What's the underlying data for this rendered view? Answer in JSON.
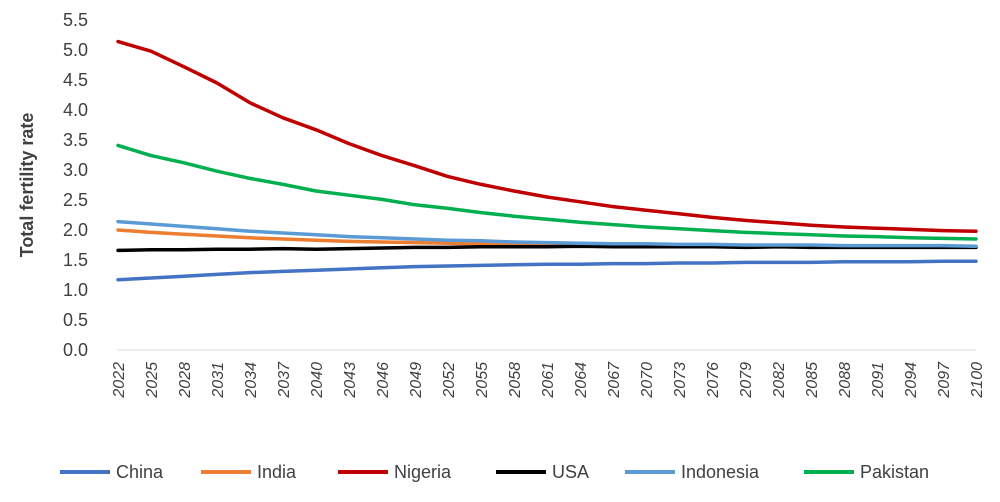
{
  "chart_data": {
    "type": "line",
    "ylabel": "Total fertility rate",
    "xlabel": "",
    "title": "",
    "ylim": [
      0,
      5.5
    ],
    "yticks": [
      "0.0",
      "0.5",
      "1.0",
      "1.5",
      "2.0",
      "2.5",
      "3.0",
      "3.5",
      "4.0",
      "4.5",
      "5.0",
      "5.5"
    ],
    "xrange": [
      2022,
      2100
    ],
    "xticks": [
      "2022",
      "2025",
      "2028",
      "2031",
      "2034",
      "2037",
      "2040",
      "2043",
      "2046",
      "2049",
      "2052",
      "2055",
      "2058",
      "2061",
      "2064",
      "2067",
      "2070",
      "2073",
      "2076",
      "2079",
      "2082",
      "2085",
      "2088",
      "2091",
      "2094",
      "2097",
      "2100"
    ],
    "grid": false,
    "legend_position": "bottom",
    "series": [
      {
        "name": "China",
        "color": "#4472c4",
        "points": [
          [
            2022,
            1.17
          ],
          [
            2025,
            1.2
          ],
          [
            2028,
            1.23
          ],
          [
            2031,
            1.26
          ],
          [
            2034,
            1.29
          ],
          [
            2037,
            1.31
          ],
          [
            2040,
            1.33
          ],
          [
            2043,
            1.35
          ],
          [
            2046,
            1.37
          ],
          [
            2049,
            1.39
          ],
          [
            2052,
            1.4
          ],
          [
            2055,
            1.41
          ],
          [
            2058,
            1.42
          ],
          [
            2061,
            1.43
          ],
          [
            2064,
            1.43
          ],
          [
            2067,
            1.44
          ],
          [
            2070,
            1.44
          ],
          [
            2073,
            1.45
          ],
          [
            2076,
            1.45
          ],
          [
            2079,
            1.46
          ],
          [
            2082,
            1.46
          ],
          [
            2085,
            1.46
          ],
          [
            2088,
            1.47
          ],
          [
            2091,
            1.47
          ],
          [
            2094,
            1.47
          ],
          [
            2097,
            1.48
          ],
          [
            2100,
            1.48
          ]
        ]
      },
      {
        "name": "India",
        "color": "#ed7d31",
        "points": [
          [
            2022,
            2.0
          ],
          [
            2025,
            1.96
          ],
          [
            2028,
            1.93
          ],
          [
            2031,
            1.9
          ],
          [
            2034,
            1.87
          ],
          [
            2037,
            1.85
          ],
          [
            2040,
            1.83
          ],
          [
            2043,
            1.81
          ],
          [
            2046,
            1.8
          ],
          [
            2049,
            1.79
          ],
          [
            2052,
            1.78
          ],
          [
            2055,
            1.77
          ],
          [
            2058,
            1.76
          ],
          [
            2061,
            1.76
          ],
          [
            2064,
            1.75
          ],
          [
            2067,
            1.75
          ],
          [
            2070,
            1.74
          ],
          [
            2073,
            1.74
          ],
          [
            2076,
            1.74
          ],
          [
            2079,
            1.73
          ],
          [
            2082,
            1.73
          ],
          [
            2085,
            1.73
          ],
          [
            2088,
            1.73
          ],
          [
            2091,
            1.72
          ],
          [
            2094,
            1.72
          ],
          [
            2097,
            1.72
          ],
          [
            2100,
            1.72
          ]
        ]
      },
      {
        "name": "Nigeria",
        "color": "#c00000",
        "points": [
          [
            2022,
            5.14
          ],
          [
            2025,
            4.98
          ],
          [
            2028,
            4.72
          ],
          [
            2031,
            4.45
          ],
          [
            2034,
            4.12
          ],
          [
            2037,
            3.87
          ],
          [
            2040,
            3.67
          ],
          [
            2043,
            3.44
          ],
          [
            2046,
            3.24
          ],
          [
            2049,
            3.07
          ],
          [
            2052,
            2.89
          ],
          [
            2055,
            2.76
          ],
          [
            2058,
            2.65
          ],
          [
            2061,
            2.55
          ],
          [
            2064,
            2.47
          ],
          [
            2067,
            2.39
          ],
          [
            2070,
            2.33
          ],
          [
            2073,
            2.27
          ],
          [
            2076,
            2.21
          ],
          [
            2079,
            2.16
          ],
          [
            2082,
            2.12
          ],
          [
            2085,
            2.08
          ],
          [
            2088,
            2.05
          ],
          [
            2091,
            2.03
          ],
          [
            2094,
            2.01
          ],
          [
            2097,
            1.99
          ],
          [
            2100,
            1.98
          ]
        ]
      },
      {
        "name": "USA",
        "color": "#000000",
        "points": [
          [
            2022,
            1.66
          ],
          [
            2025,
            1.67
          ],
          [
            2028,
            1.67
          ],
          [
            2031,
            1.68
          ],
          [
            2034,
            1.68
          ],
          [
            2037,
            1.69
          ],
          [
            2040,
            1.68
          ],
          [
            2043,
            1.69
          ],
          [
            2046,
            1.7
          ],
          [
            2049,
            1.71
          ],
          [
            2052,
            1.71
          ],
          [
            2055,
            1.72
          ],
          [
            2058,
            1.72
          ],
          [
            2061,
            1.72
          ],
          [
            2064,
            1.73
          ],
          [
            2067,
            1.72
          ],
          [
            2070,
            1.72
          ],
          [
            2073,
            1.72
          ],
          [
            2076,
            1.72
          ],
          [
            2079,
            1.71
          ],
          [
            2082,
            1.72
          ],
          [
            2085,
            1.71
          ],
          [
            2088,
            1.71
          ],
          [
            2091,
            1.71
          ],
          [
            2094,
            1.71
          ],
          [
            2097,
            1.71
          ],
          [
            2100,
            1.71
          ]
        ]
      },
      {
        "name": "Indonesia",
        "color": "#5b9bd5",
        "points": [
          [
            2022,
            2.14
          ],
          [
            2025,
            2.1
          ],
          [
            2028,
            2.06
          ],
          [
            2031,
            2.02
          ],
          [
            2034,
            1.98
          ],
          [
            2037,
            1.95
          ],
          [
            2040,
            1.92
          ],
          [
            2043,
            1.89
          ],
          [
            2046,
            1.87
          ],
          [
            2049,
            1.85
          ],
          [
            2052,
            1.83
          ],
          [
            2055,
            1.82
          ],
          [
            2058,
            1.8
          ],
          [
            2061,
            1.79
          ],
          [
            2064,
            1.78
          ],
          [
            2067,
            1.77
          ],
          [
            2070,
            1.77
          ],
          [
            2073,
            1.76
          ],
          [
            2076,
            1.76
          ],
          [
            2079,
            1.75
          ],
          [
            2082,
            1.75
          ],
          [
            2085,
            1.75
          ],
          [
            2088,
            1.74
          ],
          [
            2091,
            1.74
          ],
          [
            2094,
            1.74
          ],
          [
            2097,
            1.74
          ],
          [
            2100,
            1.73
          ]
        ]
      },
      {
        "name": "Pakistan",
        "color": "#00b050",
        "points": [
          [
            2022,
            3.41
          ],
          [
            2025,
            3.24
          ],
          [
            2028,
            3.12
          ],
          [
            2031,
            2.98
          ],
          [
            2034,
            2.86
          ],
          [
            2037,
            2.76
          ],
          [
            2040,
            2.65
          ],
          [
            2043,
            2.58
          ],
          [
            2046,
            2.51
          ],
          [
            2049,
            2.42
          ],
          [
            2052,
            2.36
          ],
          [
            2055,
            2.29
          ],
          [
            2058,
            2.23
          ],
          [
            2061,
            2.18
          ],
          [
            2064,
            2.13
          ],
          [
            2067,
            2.09
          ],
          [
            2070,
            2.05
          ],
          [
            2073,
            2.02
          ],
          [
            2076,
            1.99
          ],
          [
            2079,
            1.96
          ],
          [
            2082,
            1.94
          ],
          [
            2085,
            1.92
          ],
          [
            2088,
            1.9
          ],
          [
            2091,
            1.89
          ],
          [
            2094,
            1.87
          ],
          [
            2097,
            1.86
          ],
          [
            2100,
            1.85
          ]
        ]
      }
    ]
  }
}
